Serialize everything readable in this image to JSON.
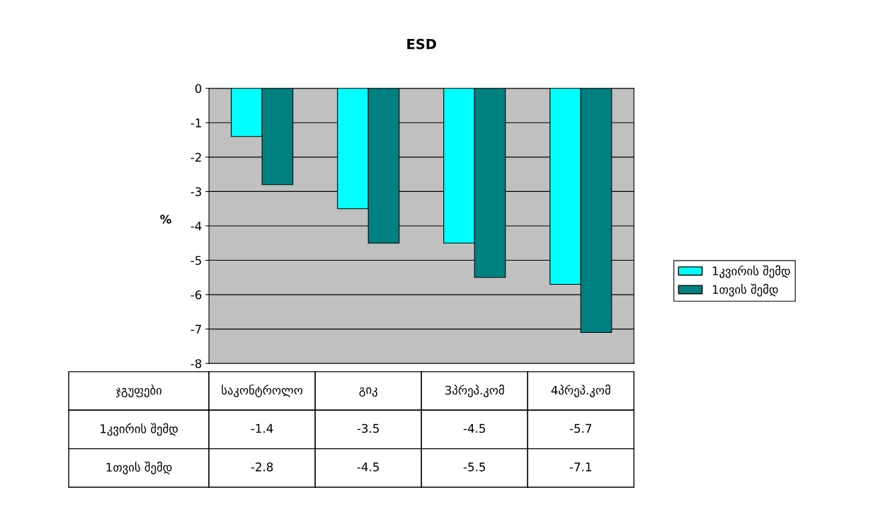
{
  "chart_data": {
    "type": "bar",
    "title": "ESD",
    "ylabel": "%",
    "xlabel": "ჯგუფები",
    "categories": [
      "საკონტროლო",
      "გიკ",
      "3პრეპ.კომ",
      "4პრეპ.კომ"
    ],
    "series": [
      {
        "name": "1კვირის შემდ",
        "color": "#00ffff",
        "values": [
          -1.4,
          -3.5,
          -4.5,
          -5.7
        ]
      },
      {
        "name": "1თვის შემდ",
        "color": "#008080",
        "values": [
          -2.8,
          -4.5,
          -5.5,
          -7.1
        ]
      }
    ],
    "ylim": [
      -8,
      0
    ],
    "yticks": [
      -8,
      -7,
      -6,
      -5,
      -4,
      -3,
      -2,
      -1,
      0
    ],
    "grid": "y",
    "legend": "right",
    "data_labels": true
  }
}
